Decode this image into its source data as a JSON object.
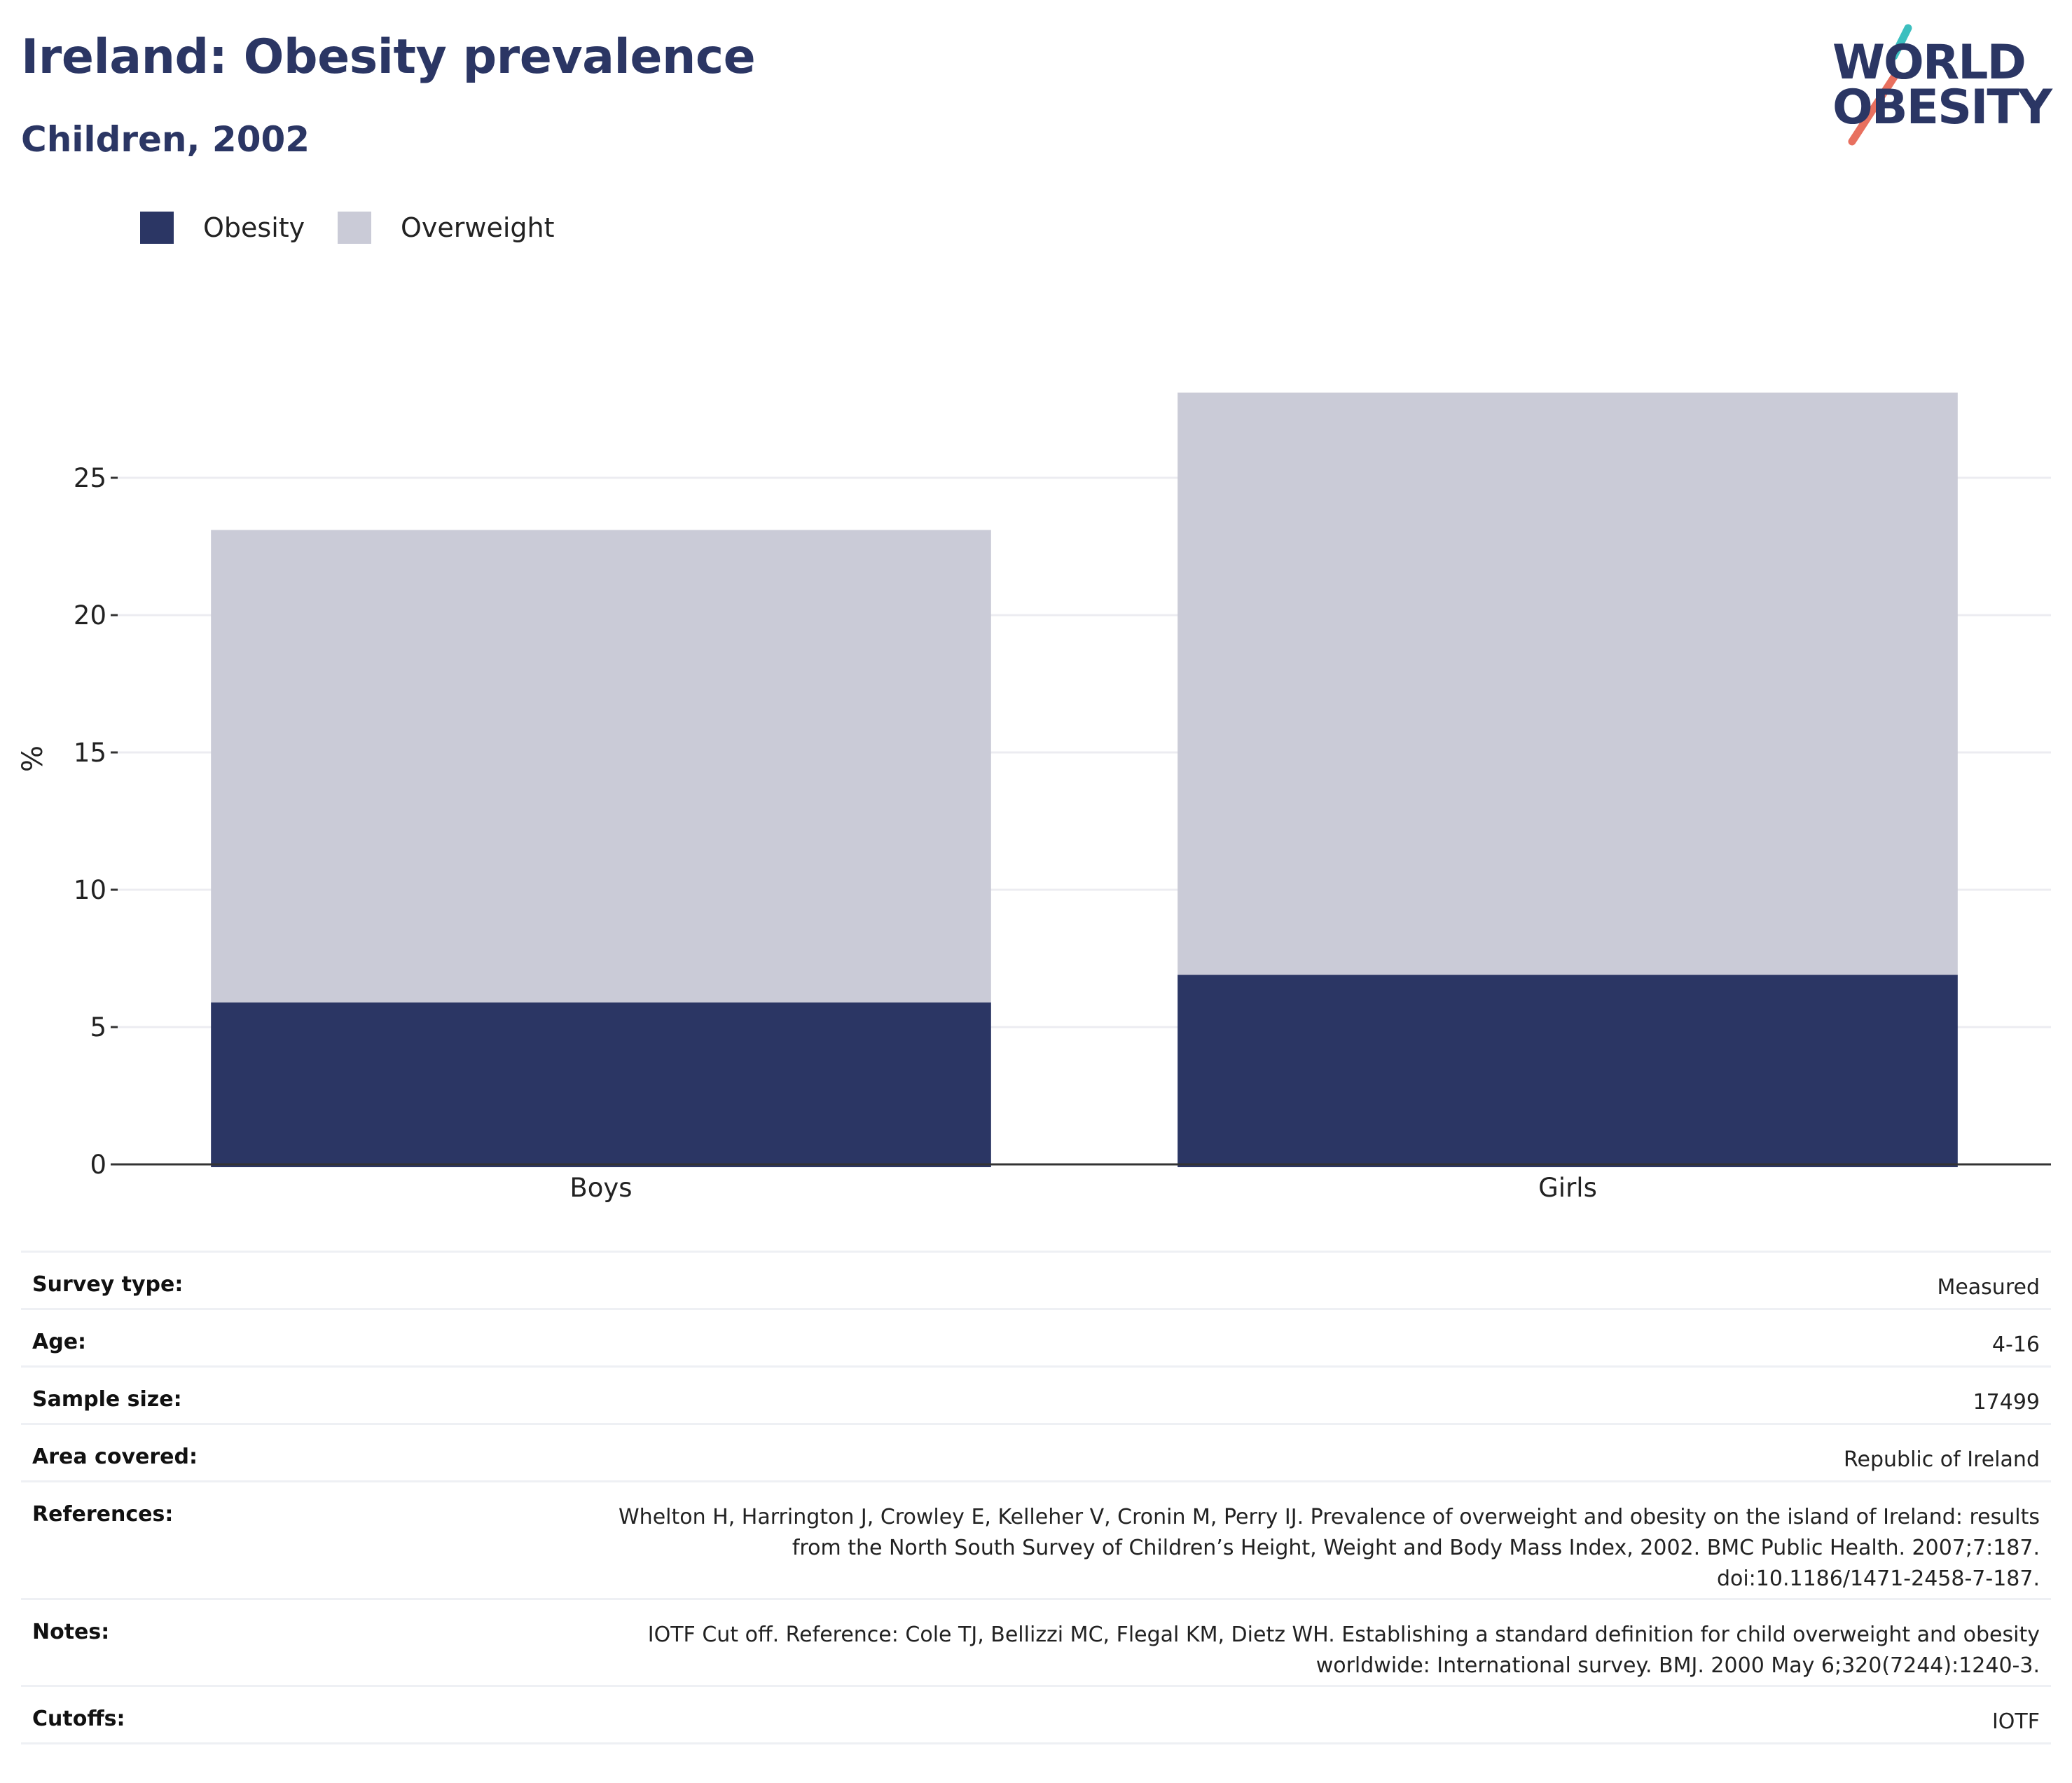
{
  "header": {
    "title": "Ireland: Obesity prevalence",
    "subtitle": "Children, 2002"
  },
  "logo": {
    "line1": "WORLD",
    "line2": "OBESITY",
    "slash_colors": [
      "#3cbfbf",
      "#e8705f"
    ],
    "text_color": "#2b3664"
  },
  "legend": {
    "items": [
      {
        "label": "Obesity",
        "color": "#2b3664"
      },
      {
        "label": "Overweight",
        "color": "#cacbd7"
      }
    ]
  },
  "chart_data": {
    "type": "bar",
    "stacked": true,
    "categories": [
      "Boys",
      "Girls"
    ],
    "series": [
      {
        "name": "Obesity",
        "values": [
          5.9,
          6.9
        ],
        "color": "#2b3664"
      },
      {
        "name": "Overweight",
        "values": [
          17.2,
          21.2
        ],
        "color": "#cacbd7"
      }
    ],
    "title": "Ireland: Obesity prevalence",
    "subtitle": "Children, 2002",
    "xlabel": "",
    "ylabel": "%",
    "ylim": [
      0,
      30
    ],
    "yticks": [
      0,
      5,
      10,
      15,
      20,
      25
    ],
    "grid": true,
    "legend_position": "top-left"
  },
  "info": {
    "rows": [
      {
        "label": "Survey type:",
        "value": [
          "Measured"
        ]
      },
      {
        "label": "Age:",
        "value": [
          "4-16"
        ]
      },
      {
        "label": "Sample size:",
        "value": [
          "17499"
        ]
      },
      {
        "label": "Area covered:",
        "value": [
          "Republic of Ireland"
        ]
      },
      {
        "label": "References:",
        "value": [
          "Whelton H, Harrington J, Crowley E, Kelleher V, Cronin M, Perry IJ. Prevalence of overweight and obesity on the island of Ireland: results",
          "from the North South Survey of Children’s Height, Weight and Body Mass Index, 2002. BMC Public Health. 2007;7:187.",
          "doi:10.1186/1471-2458-7-187."
        ]
      },
      {
        "label": "Notes:",
        "value": [
          "IOTF Cut off. Reference: Cole TJ, Bellizzi MC, Flegal KM, Dietz WH. Establishing a standard definition for child overweight and obesity",
          "worldwide: International survey. BMJ. 2000 May 6;320(7244):1240-3."
        ]
      },
      {
        "label": "Cutoffs:",
        "value": [
          "IOTF"
        ]
      }
    ]
  }
}
